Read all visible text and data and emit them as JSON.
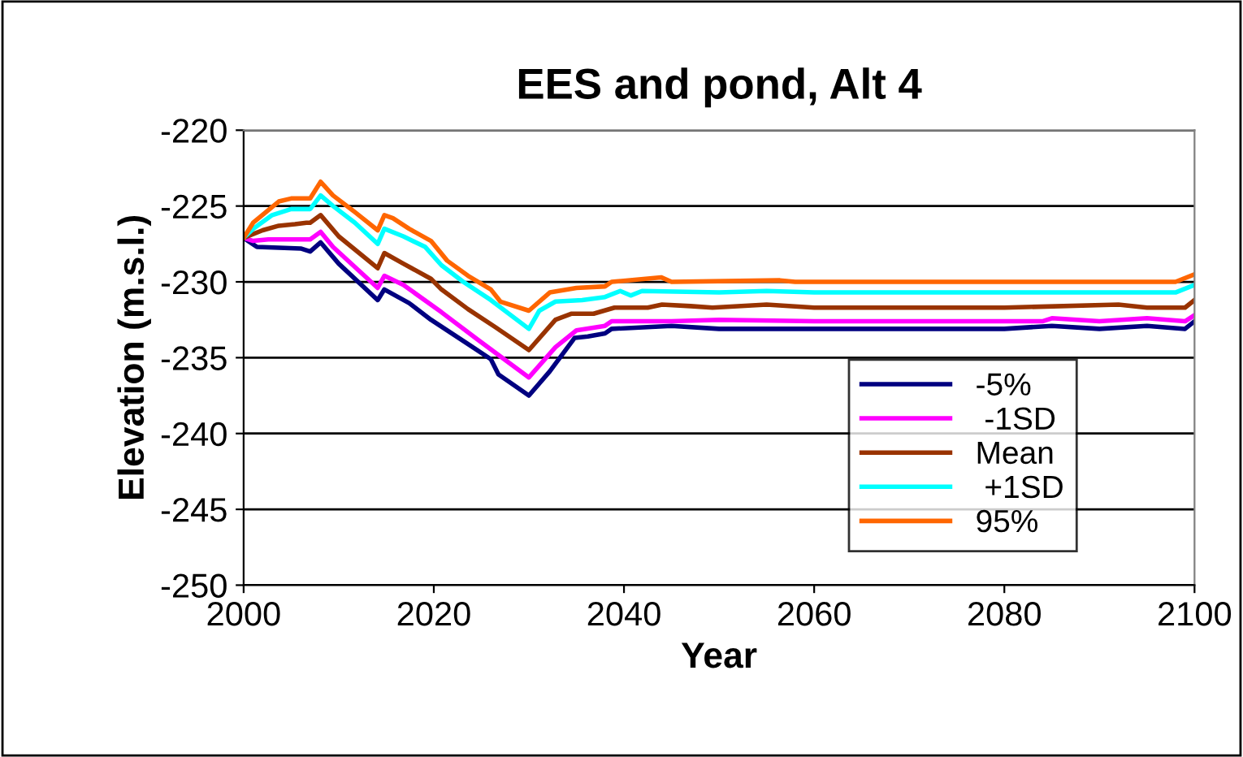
{
  "chart_data": {
    "type": "line",
    "title": "EES and pond, Alt 4",
    "xlabel": "Year",
    "ylabel": "Elevation (m.s.l.)",
    "xlim": [
      2000,
      2100
    ],
    "xticks": [
      2000,
      2020,
      2040,
      2060,
      2080,
      2100
    ],
    "ylim": [
      -250,
      -220
    ],
    "yticks": [
      -250,
      -245,
      -240,
      -235,
      -230,
      -225,
      -220
    ],
    "grid": "y",
    "legend": "bottom right",
    "marker": "none",
    "line_style": "solid",
    "series": [
      {
        "name": "-5%",
        "color": "#000080",
        "x": [
          2000,
          2001.4,
          2006,
          2007,
          2008.1,
          2010,
          2014.1,
          2014.8,
          2017.4,
          2019.7,
          2023.6,
          2026,
          2026.8,
          2030,
          2032.2,
          2034.8,
          2036.2,
          2038,
          2038.7,
          2045,
          2050,
          2060,
          2070,
          2080,
          2085,
          2090,
          2095,
          2099,
          2100
        ],
        "values": [
          -227.1,
          -227.7,
          -227.8,
          -228,
          -227.4,
          -228.8,
          -231.2,
          -230.5,
          -231.4,
          -232.5,
          -234.1,
          -235.1,
          -236.1,
          -237.5,
          -235.9,
          -233.7,
          -233.6,
          -233.4,
          -233.1,
          -232.9,
          -233.1,
          -233.1,
          -233.1,
          -233.1,
          -232.9,
          -233.1,
          -232.9,
          -233.1,
          -232.6
        ]
      },
      {
        "name": " -1SD",
        "color": "#ff00ff",
        "x": [
          2000,
          2001,
          2002.6,
          2007,
          2008.1,
          2009.4,
          2014.1,
          2014.8,
          2016.8,
          2020.8,
          2024.8,
          2027.6,
          2030,
          2032.8,
          2035,
          2038,
          2038.7,
          2045,
          2050,
          2060,
          2070,
          2084,
          2085,
          2090,
          2095,
          2099,
          2100
        ],
        "values": [
          -227.1,
          -227.3,
          -227.2,
          -227.2,
          -226.7,
          -227.7,
          -230.4,
          -229.6,
          -230.2,
          -232,
          -233.9,
          -235.2,
          -236.3,
          -234.3,
          -233.2,
          -232.9,
          -232.6,
          -232.6,
          -232.5,
          -232.6,
          -232.6,
          -232.6,
          -232.4,
          -232.6,
          -232.4,
          -232.6,
          -232.2
        ]
      },
      {
        "name": "Mean",
        "color": "#993300",
        "x": [
          2000,
          2002,
          2003.7,
          2005.4,
          2006.6,
          2007,
          2008.1,
          2010,
          2014.1,
          2014.8,
          2016.8,
          2019.7,
          2020.8,
          2023.6,
          2026.5,
          2030,
          2032.8,
          2034.5,
          2036.8,
          2039,
          2042.5,
          2044,
          2047,
          2049.3,
          2055,
          2060,
          2070,
          2080,
          2092,
          2095,
          2099,
          2100
        ],
        "values": [
          -227.1,
          -226.6,
          -226.3,
          -226.2,
          -226.1,
          -226.1,
          -225.6,
          -227,
          -229.1,
          -228.1,
          -228.8,
          -229.8,
          -230.5,
          -231.8,
          -233,
          -234.5,
          -232.5,
          -232.1,
          -232.1,
          -231.7,
          -231.7,
          -231.5,
          -231.6,
          -231.7,
          -231.5,
          -231.7,
          -231.7,
          -231.7,
          -231.5,
          -231.7,
          -231.7,
          -231.2
        ]
      },
      {
        "name": " +1SD",
        "color": "#00ffff",
        "x": [
          2000,
          2001,
          2003,
          2005,
          2007,
          2008.1,
          2009.4,
          2011.7,
          2014.1,
          2014.8,
          2016.8,
          2019.1,
          2020.8,
          2023.1,
          2026,
          2030,
          2031.1,
          2032.8,
          2035.6,
          2038,
          2039.6,
          2040.7,
          2041.9,
          2050,
          2055,
          2060,
          2070,
          2080,
          2090,
          2098,
          2100
        ],
        "values": [
          -227.1,
          -226.5,
          -225.6,
          -225.2,
          -225.2,
          -224.3,
          -225,
          -226.1,
          -227.5,
          -226.5,
          -227,
          -227.7,
          -228.9,
          -230,
          -231.2,
          -233.1,
          -231.9,
          -231.3,
          -231.2,
          -231,
          -230.6,
          -230.9,
          -230.6,
          -230.7,
          -230.6,
          -230.7,
          -230.7,
          -230.7,
          -230.7,
          -230.7,
          -230.2
        ]
      },
      {
        "name": "95%",
        "color": "#ff6600",
        "x": [
          2000,
          2001,
          2003.7,
          2005,
          2007,
          2008.1,
          2009.4,
          2011.7,
          2014.1,
          2014.8,
          2015.7,
          2017.4,
          2019.7,
          2021.4,
          2023.6,
          2026,
          2027,
          2030,
          2032.2,
          2035,
          2038,
          2038.7,
          2043.9,
          2045,
          2056.4,
          2058,
          2070,
          2080,
          2090,
          2098,
          2100
        ],
        "values": [
          -227.1,
          -226.1,
          -224.7,
          -224.5,
          -224.5,
          -223.4,
          -224.3,
          -225.4,
          -226.6,
          -225.6,
          -225.8,
          -226.5,
          -227.3,
          -228.6,
          -229.6,
          -230.5,
          -231.3,
          -231.9,
          -230.7,
          -230.4,
          -230.3,
          -230,
          -229.7,
          -230,
          -229.9,
          -230,
          -230,
          -230,
          -230,
          -230,
          -229.5
        ]
      }
    ]
  }
}
